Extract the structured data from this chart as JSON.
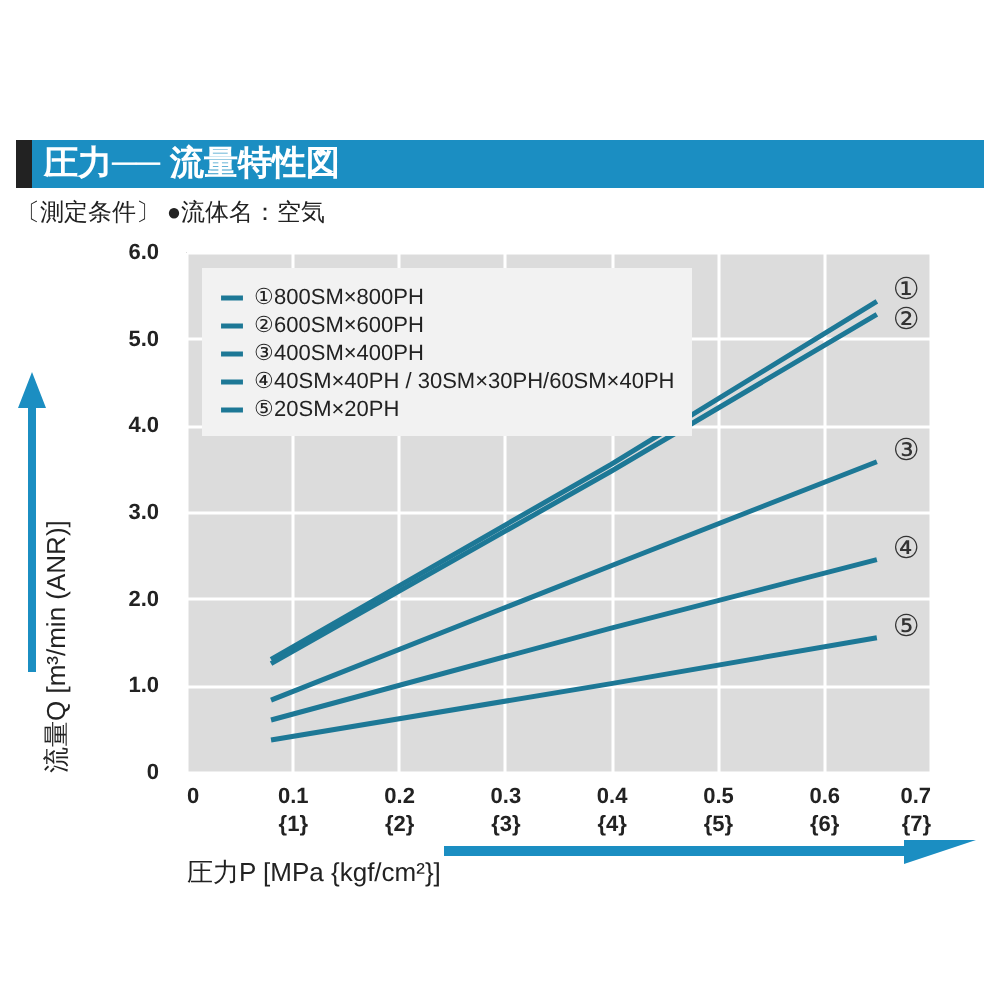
{
  "chart_data": {
    "type": "line",
    "title": "圧力── 流量特性図",
    "subtitle": "〔測定条件〕 ●流体名：空気",
    "xlabel": "圧力P [MPa {kgf/cm²}]",
    "ylabel": "流量Q [m³/min (ANR)]",
    "x": [
      0.08,
      0.4,
      0.65
    ],
    "series": [
      {
        "name": "①800SM×800PH",
        "color": "#1d7896",
        "values": [
          1.3,
          3.55,
          5.43
        ]
      },
      {
        "name": "②600SM×600PH",
        "color": "#1d7896",
        "values": [
          1.25,
          3.47,
          5.28
        ]
      },
      {
        "name": "③400SM×400PH",
        "color": "#1d7896",
        "values": [
          0.83,
          2.38,
          3.58
        ]
      },
      {
        "name": "④40SM×40PH / 30SM×30PH/60SM×40PH",
        "color": "#1d7896",
        "values": [
          0.6,
          1.66,
          2.45
        ]
      },
      {
        "name": "⑤20SM×20PH",
        "color": "#1d7896",
        "values": [
          0.37,
          1.02,
          1.55
        ]
      }
    ],
    "annotations": [
      "①",
      "②",
      "③",
      "④",
      "⑤"
    ],
    "xlim": [
      0,
      0.7
    ],
    "xticks": [
      0,
      0.1,
      0.2,
      0.3,
      0.4,
      0.5,
      0.6,
      0.7
    ],
    "x2lim": [
      0,
      7
    ],
    "x2ticks": [
      {
        "value": 1,
        "label": "{1}"
      },
      {
        "value": 2,
        "label": "{2}"
      },
      {
        "value": 3,
        "label": "{3}"
      },
      {
        "value": 4,
        "label": "{4}"
      },
      {
        "value": 5,
        "label": "{5}"
      },
      {
        "value": 6,
        "label": "{6}"
      },
      {
        "value": 7,
        "label": "{7}"
      }
    ],
    "ylim": [
      0,
      6
    ],
    "yticks": [
      0,
      {
        "value": 1,
        "label": "1.0"
      },
      {
        "value": 2,
        "label": "2.0"
      },
      {
        "value": 3,
        "label": "3.0"
      },
      {
        "value": 4,
        "label": "4.0"
      },
      {
        "value": 5,
        "label": "5.0"
      },
      {
        "value": 6,
        "label": "6.0"
      }
    ],
    "grid": true,
    "legend": "top left",
    "marker": "none",
    "line_style": "solid"
  }
}
